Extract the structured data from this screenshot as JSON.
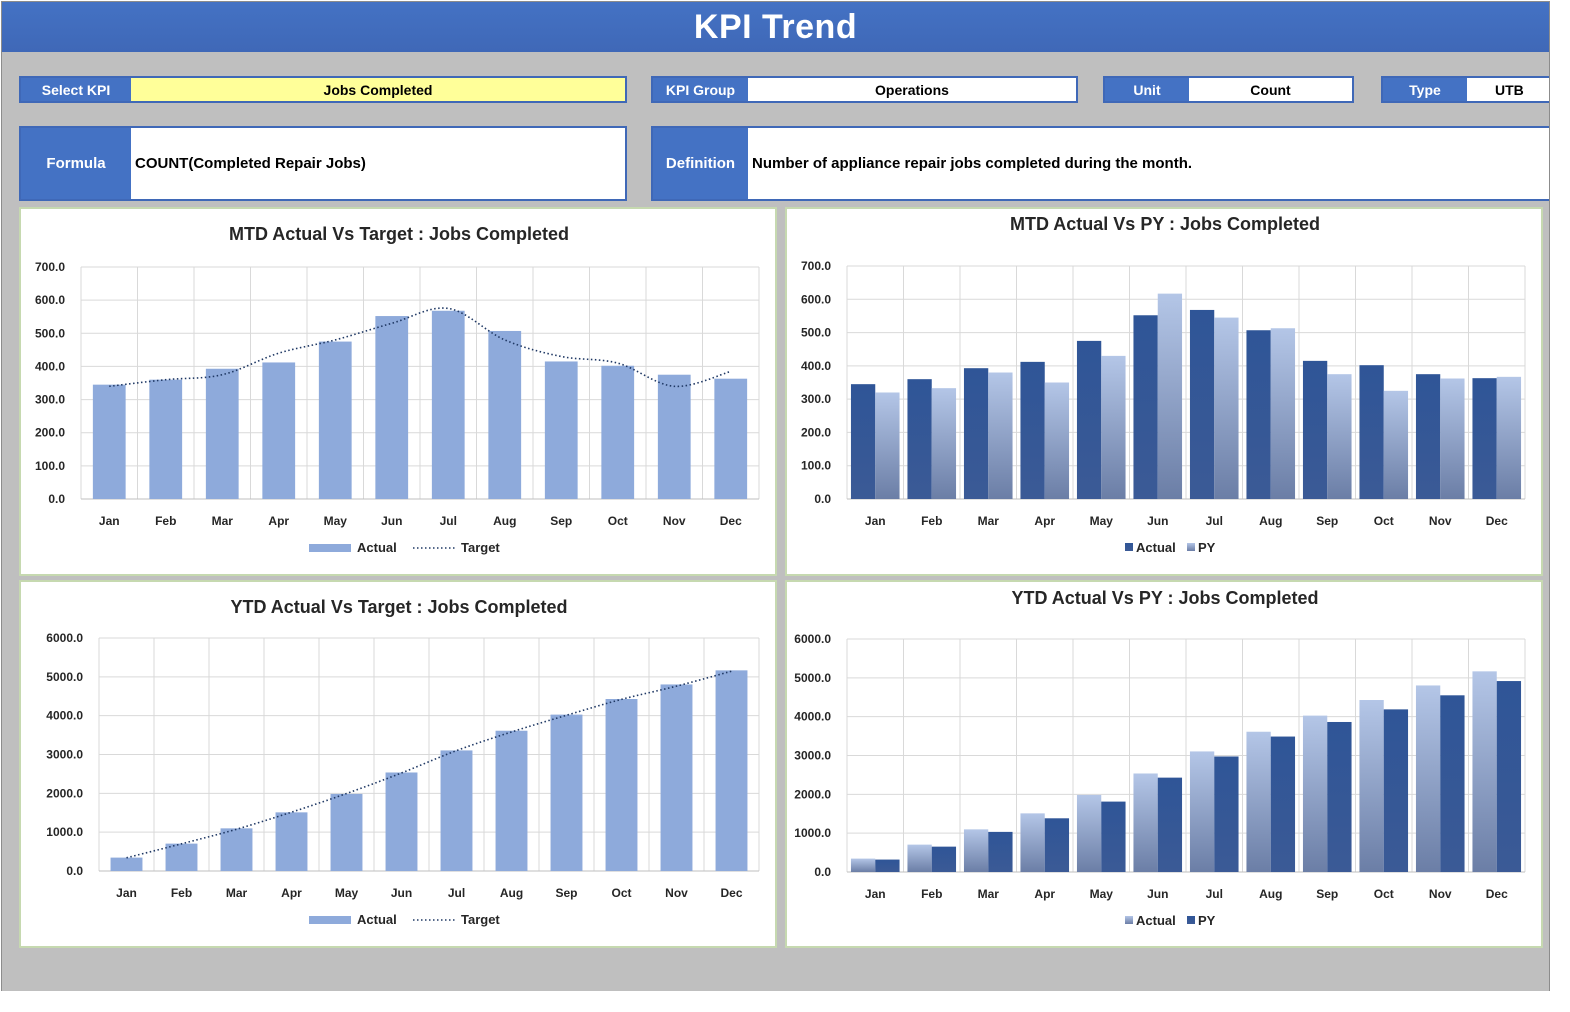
{
  "header": {
    "title": "KPI Trend"
  },
  "fields": {
    "select_kpi": {
      "label": "Select KPI",
      "value": "Jobs Completed"
    },
    "kpi_group": {
      "label": "KPI Group",
      "value": "Operations"
    },
    "unit": {
      "label": "Unit",
      "value": "Count"
    },
    "type": {
      "label": "Type",
      "value": "UTB"
    },
    "formula": {
      "label": "Formula",
      "value": "COUNT(Completed Repair Jobs)"
    },
    "definition": {
      "label": "Definition",
      "value": "Number of appliance repair jobs completed during the month."
    }
  },
  "colors": {
    "header_blue": "#4472c4",
    "select_highlight": "#ffff99",
    "actual_light": "#8eaadb",
    "actual_dark": "#2f5597",
    "py_light": "#b4c6e7",
    "target_line": "#1f3864"
  },
  "chart_data": [
    {
      "id": "mtd_target",
      "type": "bar",
      "title": "MTD Actual Vs Target : Jobs Completed",
      "categories": [
        "Jan",
        "Feb",
        "Mar",
        "Apr",
        "May",
        "Jun",
        "Jul",
        "Aug",
        "Sep",
        "Oct",
        "Nov",
        "Dec"
      ],
      "series": [
        {
          "name": "Actual",
          "kind": "bar",
          "values": [
            345,
            360,
            393,
            412,
            475,
            552,
            568,
            507,
            415,
            402,
            375,
            363
          ]
        },
        {
          "name": "Target",
          "kind": "line-dotted",
          "values": [
            340,
            360,
            375,
            440,
            480,
            530,
            575,
            480,
            430,
            410,
            340,
            385
          ]
        }
      ],
      "ylim": [
        0,
        700
      ],
      "yticks": [
        "0.0",
        "100.0",
        "200.0",
        "300.0",
        "400.0",
        "500.0",
        "600.0",
        "700.0"
      ],
      "legend": "bottom"
    },
    {
      "id": "mtd_py",
      "type": "bar",
      "title": "MTD Actual Vs PY : Jobs Completed",
      "categories": [
        "Jan",
        "Feb",
        "Mar",
        "Apr",
        "May",
        "Jun",
        "Jul",
        "Aug",
        "Sep",
        "Oct",
        "Nov",
        "Dec"
      ],
      "series": [
        {
          "name": "Actual",
          "kind": "bar-dark",
          "values": [
            345,
            360,
            393,
            412,
            475,
            552,
            568,
            507,
            415,
            402,
            375,
            363
          ]
        },
        {
          "name": "PY",
          "kind": "bar-light",
          "values": [
            320,
            333,
            380,
            350,
            430,
            617,
            545,
            513,
            375,
            325,
            362,
            367
          ]
        }
      ],
      "ylim": [
        0,
        700
      ],
      "yticks": [
        "0.0",
        "100.0",
        "200.0",
        "300.0",
        "400.0",
        "500.0",
        "600.0",
        "700.0"
      ],
      "legend": "bottom"
    },
    {
      "id": "ytd_target",
      "type": "bar",
      "title": "YTD Actual Vs Target : Jobs Completed",
      "categories": [
        "Jan",
        "Feb",
        "Mar",
        "Apr",
        "May",
        "Jun",
        "Jul",
        "Aug",
        "Sep",
        "Oct",
        "Nov",
        "Dec"
      ],
      "series": [
        {
          "name": "Actual",
          "kind": "bar",
          "values": [
            345,
            705,
            1098,
            1510,
            1985,
            2537,
            3105,
            3612,
            4027,
            4429,
            4804,
            5167
          ]
        },
        {
          "name": "Target",
          "kind": "line-dotted",
          "values": [
            340,
            700,
            1075,
            1515,
            1995,
            2525,
            3100,
            3580,
            4010,
            4420,
            4760,
            5145
          ]
        }
      ],
      "ylim": [
        0,
        6000
      ],
      "yticks": [
        "0.0",
        "1000.0",
        "2000.0",
        "3000.0",
        "4000.0",
        "5000.0",
        "6000.0"
      ],
      "legend": "bottom"
    },
    {
      "id": "ytd_py",
      "type": "bar",
      "title": "YTD Actual Vs PY : Jobs Completed",
      "categories": [
        "Jan",
        "Feb",
        "Mar",
        "Apr",
        "May",
        "Jun",
        "Jul",
        "Aug",
        "Sep",
        "Oct",
        "Nov",
        "Dec"
      ],
      "series": [
        {
          "name": "Actual",
          "kind": "bar-light",
          "values": [
            345,
            705,
            1098,
            1510,
            1985,
            2537,
            3105,
            3612,
            4027,
            4429,
            4804,
            5167
          ]
        },
        {
          "name": "PY",
          "kind": "bar-dark",
          "values": [
            320,
            653,
            1033,
            1383,
            1813,
            2430,
            2975,
            3488,
            3863,
            4188,
            4550,
            4917
          ]
        }
      ],
      "ylim": [
        0,
        6000
      ],
      "yticks": [
        "0.0",
        "1000.0",
        "2000.0",
        "3000.0",
        "4000.0",
        "5000.0",
        "6000.0"
      ],
      "legend": "bottom"
    }
  ]
}
